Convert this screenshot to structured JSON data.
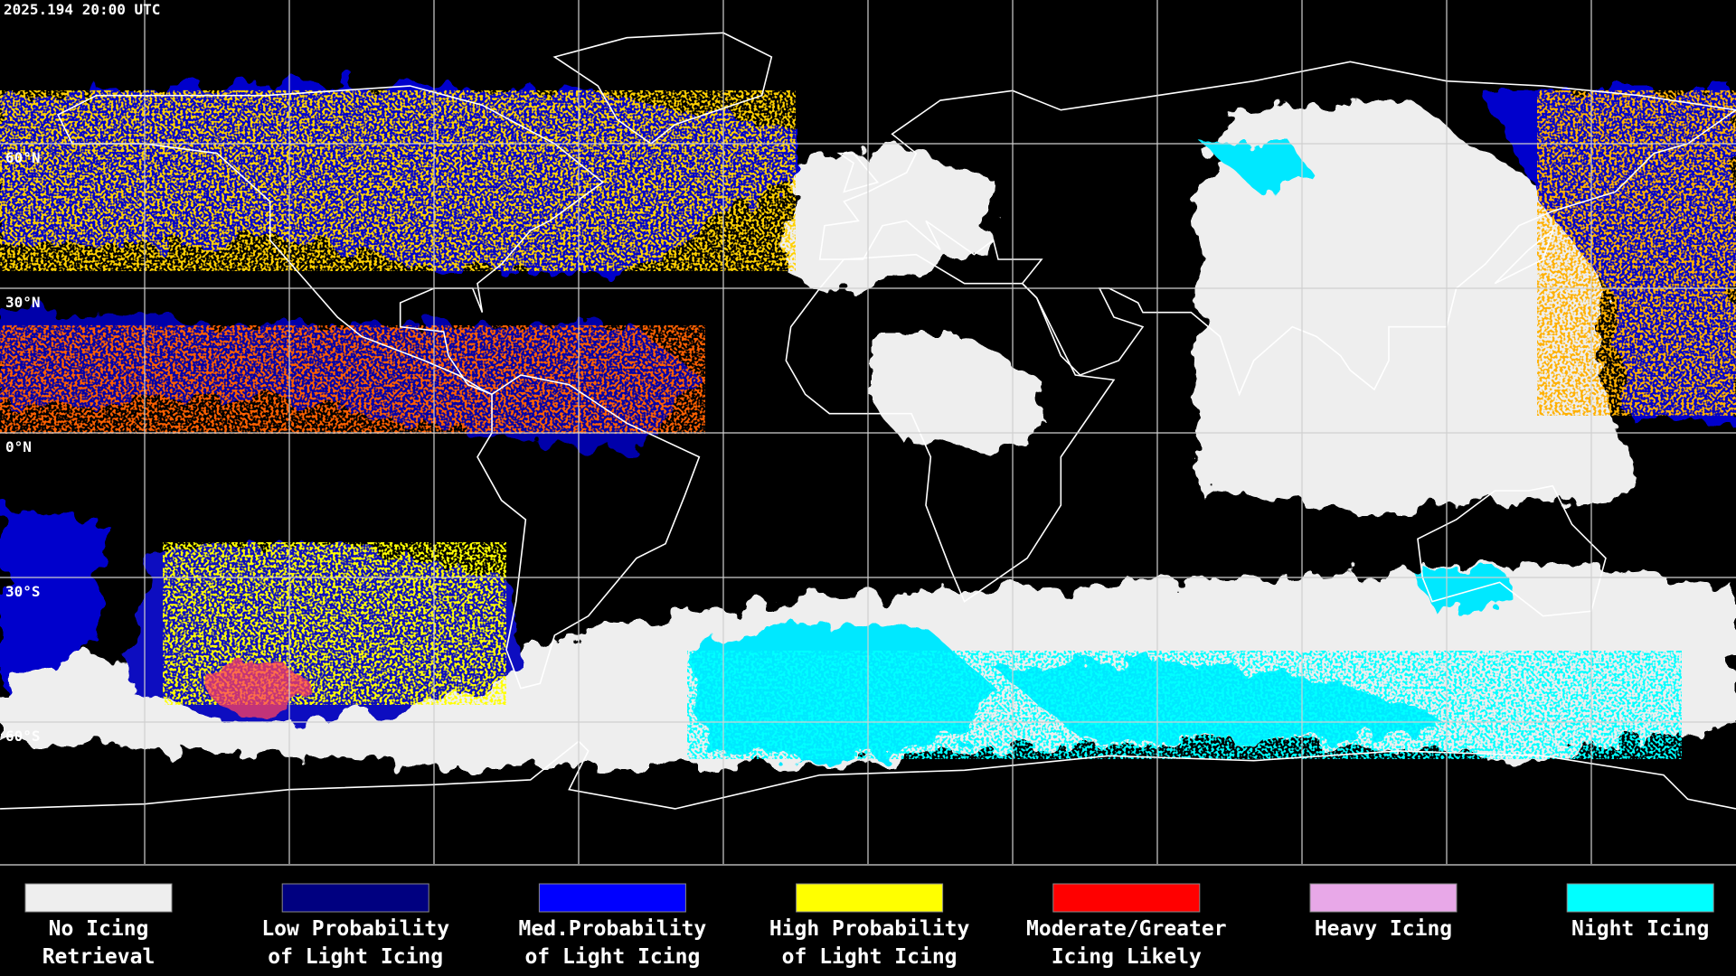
{
  "timestamp": "2025.194 20:00 UTC",
  "latitude_labels": [
    "60°N",
    "30°N",
    "0°N",
    "30°S",
    "60°S"
  ],
  "legend": [
    {
      "lines": [
        "No Icing",
        "Retrieval"
      ],
      "color": "#eeeeee"
    },
    {
      "lines": [
        "Low Probability",
        "of Light Icing"
      ],
      "color": "#000080"
    },
    {
      "lines": [
        "Med.Probability",
        "of Light Icing"
      ],
      "color": "#0000ff"
    },
    {
      "lines": [
        "High Probability",
        "of Light Icing"
      ],
      "color": "#ffff00"
    },
    {
      "lines": [
        "Moderate/Greater",
        "Icing Likely"
      ],
      "color": "#ff0000"
    },
    {
      "lines": [
        "Heavy Icing"
      ],
      "color": "#e8a8e8"
    },
    {
      "lines": [
        "Night Icing"
      ],
      "color": "#00ffff"
    }
  ]
}
